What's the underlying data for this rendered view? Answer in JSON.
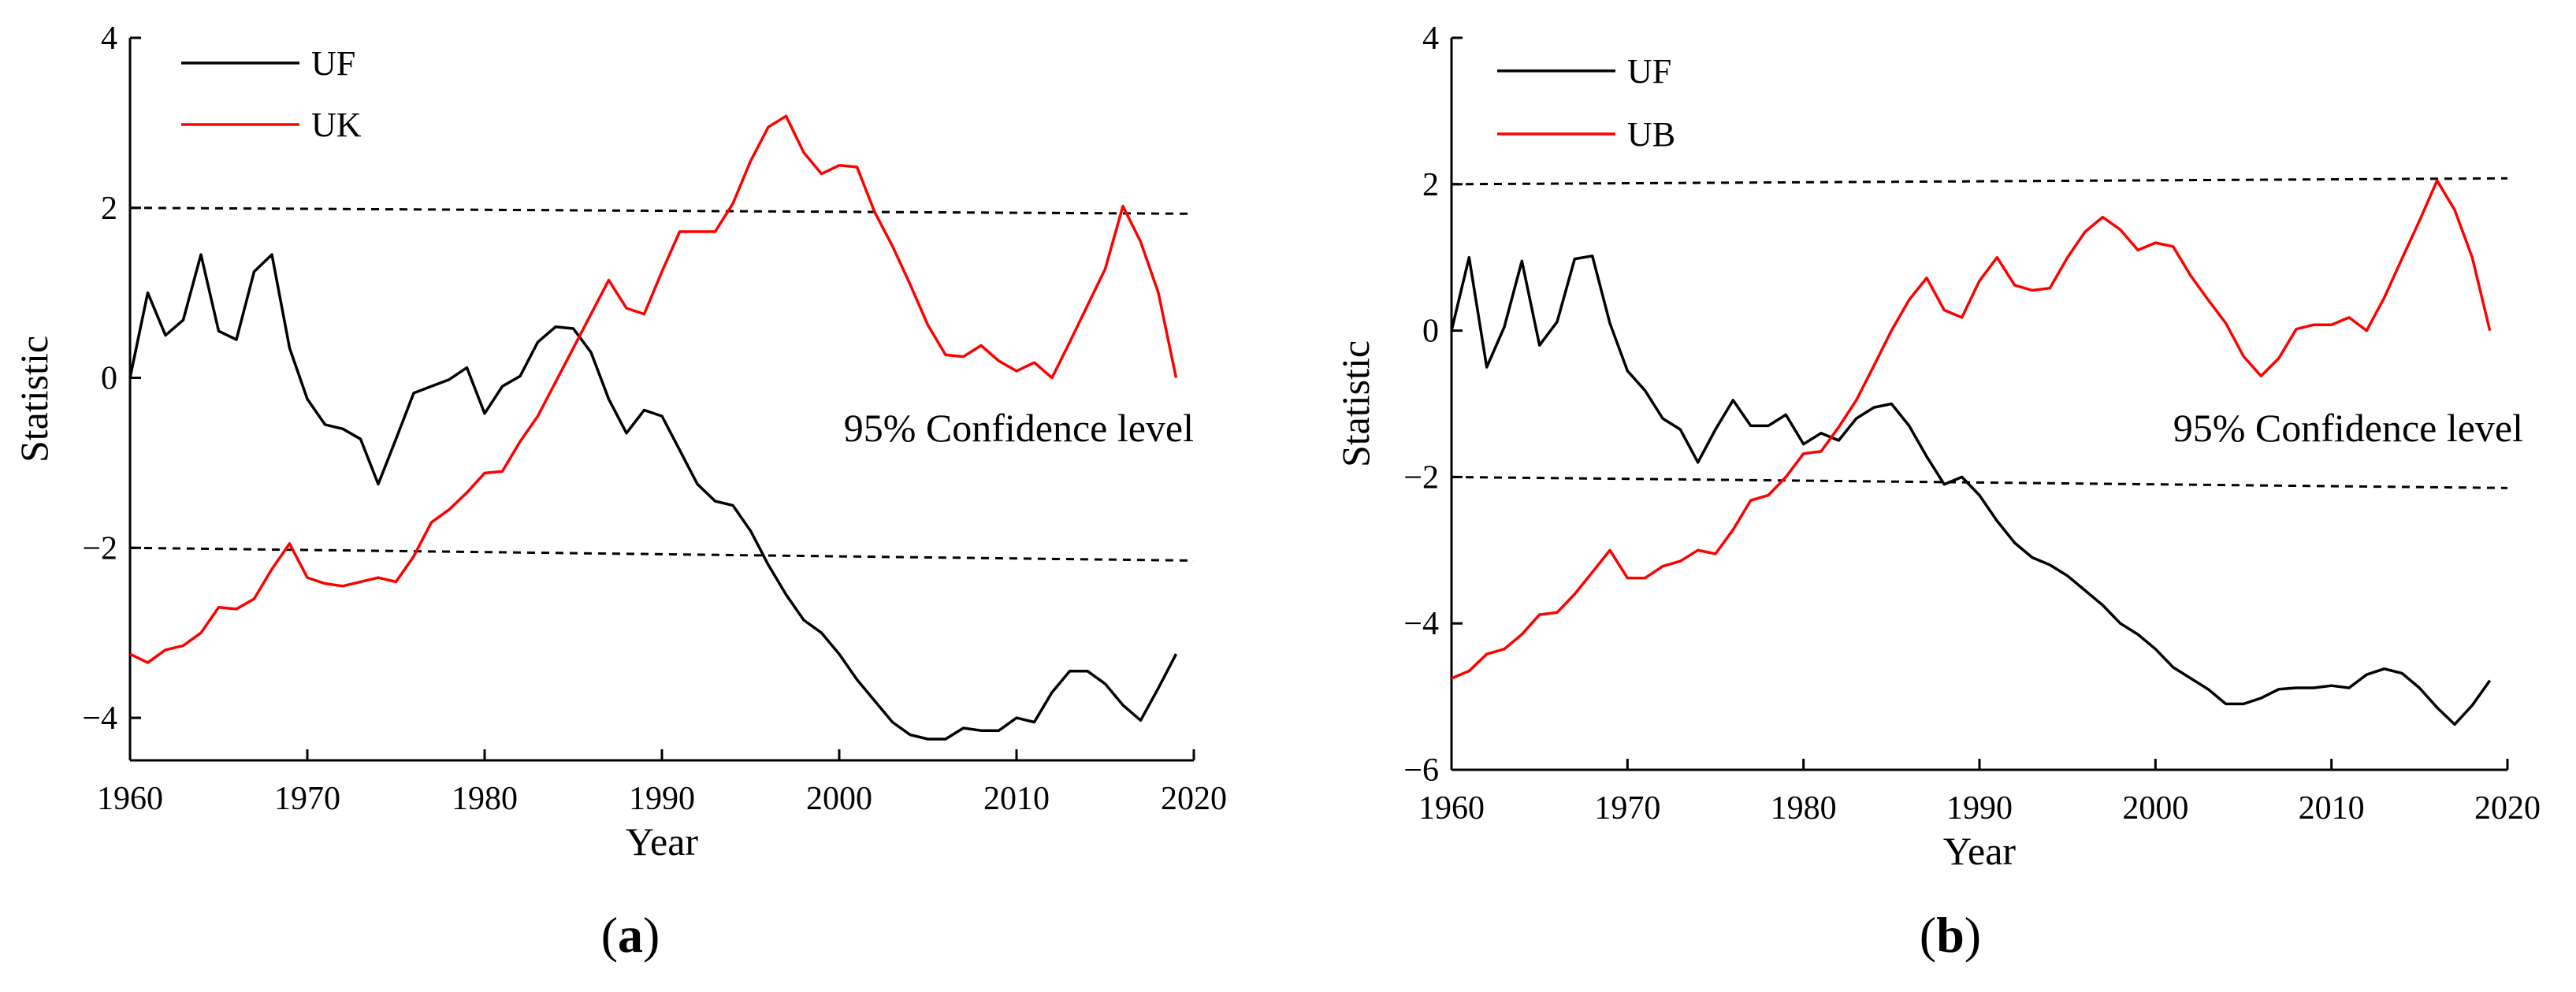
{
  "chart_data": [
    {
      "type": "line",
      "panel_label": "a",
      "xlabel": "Year",
      "ylabel": "Statistic",
      "xlim": [
        1960,
        2020
      ],
      "ylim": [
        -4.5,
        4
      ],
      "xticks": [
        1960,
        1970,
        1980,
        1990,
        2000,
        2010,
        2020
      ],
      "yticks": [
        -4,
        -2,
        0,
        2,
        4
      ],
      "ytick_labels": [
        "−4",
        "−2",
        "0",
        "2",
        "4"
      ],
      "annotation": "95% Confidence level",
      "legend_position": "top-left",
      "confidence_lines": [
        {
          "x": [
            1960,
            2020
          ],
          "y": [
            2.0,
            1.93
          ]
        },
        {
          "x": [
            1960,
            2020
          ],
          "y": [
            -2.0,
            -2.15
          ]
        }
      ],
      "series": [
        {
          "name": "UF",
          "color": "#000000",
          "x": [
            1960,
            1961,
            1962,
            1963,
            1964,
            1965,
            1966,
            1967,
            1968,
            1969,
            1970,
            1971,
            1972,
            1973,
            1974,
            1975,
            1976,
            1977,
            1978,
            1979,
            1980,
            1981,
            1982,
            1983,
            1984,
            1985,
            1986,
            1987,
            1988,
            1989,
            1990,
            1991,
            1992,
            1993,
            1994,
            1995,
            1996,
            1997,
            1998,
            1999,
            2000,
            2001,
            2002,
            2003,
            2004,
            2005,
            2006,
            2007,
            2008,
            2009,
            2010,
            2011,
            2012,
            2013,
            2014,
            2015,
            2016,
            2017,
            2018,
            2019
          ],
          "values": [
            0.0,
            1.0,
            0.5,
            0.68,
            1.45,
            0.55,
            0.45,
            1.25,
            1.45,
            0.35,
            -0.25,
            -0.55,
            -0.6,
            -0.72,
            -1.25,
            -0.72,
            -0.18,
            -0.1,
            -0.02,
            0.12,
            -0.42,
            -0.1,
            0.02,
            0.42,
            0.6,
            0.58,
            0.3,
            -0.25,
            -0.65,
            -0.38,
            -0.45,
            -0.85,
            -1.25,
            -1.45,
            -1.5,
            -1.8,
            -2.2,
            -2.55,
            -2.85,
            -3.0,
            -3.25,
            -3.55,
            -3.8,
            -4.05,
            -4.2,
            -4.25,
            -4.25,
            -4.12,
            -4.15,
            -4.15,
            -4.0,
            -4.05,
            -3.7,
            -3.45,
            -3.45,
            -3.6,
            -3.85,
            -4.03,
            -3.65,
            -3.25
          ]
        },
        {
          "name": "UK",
          "color": "#ff0000",
          "x": [
            1960,
            1961,
            1962,
            1963,
            1964,
            1965,
            1966,
            1967,
            1968,
            1969,
            1970,
            1971,
            1972,
            1973,
            1974,
            1975,
            1976,
            1977,
            1978,
            1979,
            1980,
            1981,
            1982,
            1983,
            1984,
            1985,
            1986,
            1987,
            1988,
            1989,
            1990,
            1991,
            1992,
            1993,
            1994,
            1995,
            1996,
            1997,
            1998,
            1999,
            2000,
            2001,
            2002,
            2003,
            2004,
            2005,
            2006,
            2007,
            2008,
            2009,
            2010,
            2011,
            2012,
            2013,
            2014,
            2015,
            2016,
            2017,
            2018,
            2019
          ],
          "values": [
            -3.25,
            -3.35,
            -3.2,
            -3.15,
            -3.0,
            -2.7,
            -2.72,
            -2.6,
            -2.25,
            -1.95,
            -2.35,
            -2.42,
            -2.45,
            -2.4,
            -2.35,
            -2.4,
            -2.1,
            -1.7,
            -1.55,
            -1.35,
            -1.12,
            -1.1,
            -0.75,
            -0.45,
            -0.05,
            0.35,
            0.75,
            1.15,
            0.82,
            0.75,
            1.25,
            1.72,
            1.72,
            1.72,
            2.05,
            2.55,
            2.95,
            3.08,
            2.65,
            2.4,
            2.5,
            2.48,
            1.95,
            1.55,
            1.1,
            0.62,
            0.27,
            0.25,
            0.38,
            0.2,
            0.08,
            0.18,
            0.0,
            0.42,
            0.85,
            1.28,
            2.02,
            1.6,
            1.0,
            0.0
          ]
        }
      ]
    },
    {
      "type": "line",
      "panel_label": "b",
      "xlabel": "Year",
      "ylabel": "Statistic",
      "xlim": [
        1960,
        2020
      ],
      "ylim": [
        -6,
        4
      ],
      "xticks": [
        1960,
        1970,
        1980,
        1990,
        2000,
        2010,
        2020
      ],
      "yticks": [
        -6,
        -4,
        -2,
        0,
        2,
        4
      ],
      "ytick_labels": [
        "−6",
        "−4",
        "−2",
        "0",
        "2",
        "4"
      ],
      "annotation": "95% Confidence level",
      "legend_position": "top-left",
      "confidence_lines": [
        {
          "x": [
            1960,
            2020
          ],
          "y": [
            2.0,
            2.08
          ]
        },
        {
          "x": [
            1960,
            2020
          ],
          "y": [
            -2.0,
            -2.15
          ]
        }
      ],
      "series": [
        {
          "name": "UF",
          "color": "#000000",
          "x": [
            1960,
            1961,
            1962,
            1963,
            1964,
            1965,
            1966,
            1967,
            1968,
            1969,
            1970,
            1971,
            1972,
            1973,
            1974,
            1975,
            1976,
            1977,
            1978,
            1979,
            1980,
            1981,
            1982,
            1983,
            1984,
            1985,
            1986,
            1987,
            1988,
            1989,
            1990,
            1991,
            1992,
            1993,
            1994,
            1995,
            1996,
            1997,
            1998,
            1999,
            2000,
            2001,
            2002,
            2003,
            2004,
            2005,
            2006,
            2007,
            2008,
            2009,
            2010,
            2011,
            2012,
            2013,
            2014,
            2015,
            2016,
            2017,
            2018,
            2019
          ],
          "values": [
            0.0,
            1.0,
            -0.5,
            0.05,
            0.95,
            -0.2,
            0.12,
            0.98,
            1.02,
            0.1,
            -0.55,
            -0.82,
            -1.2,
            -1.35,
            -1.8,
            -1.35,
            -0.95,
            -1.3,
            -1.3,
            -1.15,
            -1.55,
            -1.4,
            -1.5,
            -1.2,
            -1.05,
            -1.0,
            -1.3,
            -1.72,
            -2.1,
            -2.0,
            -2.25,
            -2.6,
            -2.9,
            -3.1,
            -3.2,
            -3.35,
            -3.55,
            -3.75,
            -4.0,
            -4.15,
            -4.35,
            -4.6,
            -4.75,
            -4.9,
            -5.1,
            -5.1,
            -5.02,
            -4.9,
            -4.88,
            -4.88,
            -4.85,
            -4.88,
            -4.7,
            -4.62,
            -4.68,
            -4.88,
            -5.15,
            -5.38,
            -5.12,
            -4.78
          ]
        },
        {
          "name": "UB",
          "color": "#ff0000",
          "x": [
            1960,
            1961,
            1962,
            1963,
            1964,
            1965,
            1966,
            1967,
            1968,
            1969,
            1970,
            1971,
            1972,
            1973,
            1974,
            1975,
            1976,
            1977,
            1978,
            1979,
            1980,
            1981,
            1982,
            1983,
            1984,
            1985,
            1986,
            1987,
            1988,
            1989,
            1990,
            1991,
            1992,
            1993,
            1994,
            1995,
            1996,
            1997,
            1998,
            1999,
            2000,
            2001,
            2002,
            2003,
            2004,
            2005,
            2006,
            2007,
            2008,
            2009,
            2010,
            2011,
            2012,
            2013,
            2014,
            2015,
            2016,
            2017,
            2018,
            2019
          ],
          "values": [
            -4.75,
            -4.65,
            -4.42,
            -4.35,
            -4.15,
            -3.88,
            -3.85,
            -3.6,
            -3.3,
            -3.0,
            -3.38,
            -3.38,
            -3.22,
            -3.15,
            -3.0,
            -3.05,
            -2.72,
            -2.32,
            -2.25,
            -2.0,
            -1.68,
            -1.65,
            -1.32,
            -0.95,
            -0.48,
            0.0,
            0.42,
            0.72,
            0.28,
            0.18,
            0.68,
            1.0,
            0.62,
            0.55,
            0.58,
            1.0,
            1.35,
            1.55,
            1.38,
            1.1,
            1.2,
            1.15,
            0.75,
            0.42,
            0.1,
            -0.35,
            -0.62,
            -0.38,
            0.02,
            0.08,
            0.08,
            0.18,
            0.0,
            0.45,
            0.98,
            1.5,
            2.05,
            1.65,
            1.0,
            0.0
          ]
        }
      ]
    }
  ]
}
